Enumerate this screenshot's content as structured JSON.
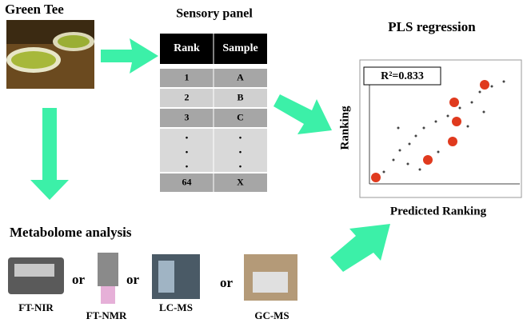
{
  "green_tea": {
    "title": "Green Tee"
  },
  "sensory_panel": {
    "title": "Sensory panel",
    "header": [
      "Rank",
      "Sample"
    ],
    "rows": [
      [
        "1",
        "A"
      ],
      [
        "2",
        "B"
      ],
      [
        "3",
        "C"
      ],
      [
        ".",
        "."
      ],
      [
        ".",
        "."
      ],
      [
        ".",
        "."
      ],
      [
        "64",
        "X"
      ]
    ]
  },
  "pls": {
    "title": "PLS regression",
    "r2": "R²=0.833",
    "y_label": "Ranking",
    "x_label": "Predicted Ranking"
  },
  "metabolome": {
    "title": "Metabolome analysis",
    "instruments": [
      {
        "label": "FT-NIR"
      },
      {
        "label": "FT-NMR"
      },
      {
        "label": "LC-MS"
      },
      {
        "label": "GC-MS"
      }
    ],
    "connectors": [
      "or",
      "or",
      "or"
    ]
  }
}
